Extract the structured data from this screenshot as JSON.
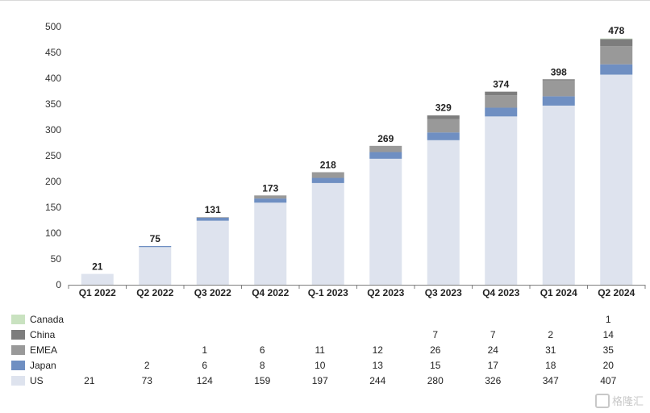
{
  "chart_data": {
    "type": "bar",
    "stacked": true,
    "categories": [
      "Q1 2022",
      "Q2 2022",
      "Q3 2022",
      "Q4 2022",
      "Q1 2023",
      "Q2 2023",
      "Q3 2023",
      "Q4 2023",
      "Q1 2024",
      "Q2 2024"
    ],
    "category_labels_display": [
      "Q1 2022",
      "Q2 2022",
      "Q3 2022",
      "Q4 2022",
      "Q‑1 2023",
      "Q2 2023",
      "Q3 2023",
      "Q4 2023",
      "Q1 2024",
      "Q2 2024"
    ],
    "totals": [
      21,
      75,
      131,
      173,
      218,
      269,
      329,
      374,
      398,
      478
    ],
    "ylim": [
      0,
      500
    ],
    "yticks": [
      0,
      50,
      100,
      150,
      200,
      250,
      300,
      350,
      400,
      450,
      500
    ],
    "grid": false,
    "legend_position": "bottom-left (data table)",
    "series": [
      {
        "name": "US",
        "color": "#dee3ee",
        "values": [
          21,
          73,
          124,
          159,
          197,
          244,
          280,
          326,
          347,
          407
        ]
      },
      {
        "name": "Japan",
        "color": "#6f8fc2",
        "values": [
          null,
          2,
          6,
          8,
          10,
          13,
          15,
          17,
          18,
          20
        ]
      },
      {
        "name": "EMEA",
        "color": "#999999",
        "values": [
          null,
          null,
          1,
          6,
          11,
          12,
          26,
          24,
          31,
          35
        ]
      },
      {
        "name": "China",
        "color": "#7d7d7d",
        "values": [
          null,
          null,
          null,
          null,
          null,
          null,
          7,
          7,
          2,
          14
        ]
      },
      {
        "name": "Canada",
        "color": "#c9e2c0",
        "values": [
          null,
          null,
          null,
          null,
          null,
          null,
          null,
          null,
          null,
          1
        ]
      }
    ],
    "table_order": [
      "Canada",
      "China",
      "EMEA",
      "Japan",
      "US"
    ]
  },
  "watermark": "格隆汇"
}
